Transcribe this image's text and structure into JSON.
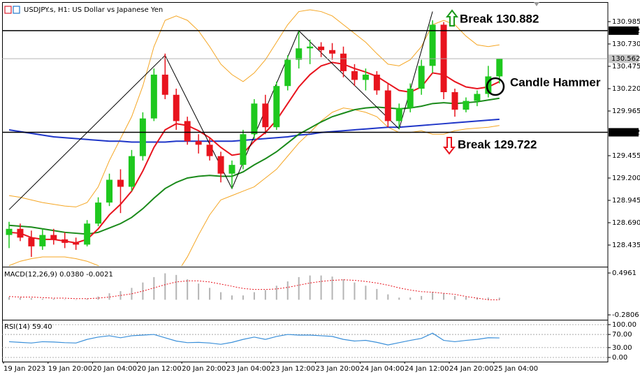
{
  "chart_data": [
    {
      "type": "candlestick",
      "title": "USDJPY.s, H1:  US Dollar vs Japanese Yen",
      "categories": [
        "19 Jan 2023",
        null,
        null,
        null,
        "19 Jan 20:00",
        null,
        null,
        null,
        "20 Jan 04:00",
        null,
        null,
        null,
        "20 Jan 12:00",
        null,
        null,
        null,
        "20 Jan 20:00",
        null,
        null,
        null,
        "23 Jan 04:00",
        null,
        null,
        null,
        "23 Jan 12:00",
        null,
        null,
        null,
        "23 Jan 20:00",
        null,
        null,
        null,
        "24 Jan 04:00",
        null,
        null,
        null,
        "24 Jan 12:00",
        null,
        null,
        null,
        "24 Jan 20:00",
        null,
        null,
        null,
        "25 Jan 04:00"
      ],
      "open": [
        128.55,
        128.62,
        128.52,
        128.42,
        128.55,
        128.5,
        128.46,
        128.44,
        128.68,
        128.92,
        129.18,
        129.1,
        129.45,
        129.88,
        130.38,
        130.15,
        129.85,
        129.62,
        129.58,
        129.45,
        129.25,
        129.35,
        129.7,
        130.05,
        129.78,
        130.25,
        130.55,
        130.68,
        130.7,
        130.66,
        130.62,
        130.42,
        130.32,
        130.38,
        130.2,
        129.85,
        130.0,
        130.22,
        130.48,
        130.95,
        130.18,
        129.98,
        130.08,
        130.16,
        130.36
      ],
      "high": [
        128.7,
        128.68,
        128.6,
        128.62,
        128.62,
        128.58,
        128.52,
        128.72,
        128.98,
        129.25,
        129.3,
        129.52,
        129.95,
        130.45,
        130.62,
        130.22,
        129.9,
        129.7,
        129.66,
        129.5,
        129.4,
        129.75,
        130.1,
        130.15,
        130.3,
        130.6,
        130.88,
        130.78,
        130.75,
        130.74,
        130.7,
        130.5,
        130.45,
        130.42,
        130.28,
        130.05,
        130.28,
        130.55,
        131.0,
        130.98,
        130.22,
        130.12,
        130.2,
        130.48,
        130.56
      ],
      "low": [
        128.4,
        128.48,
        128.3,
        128.38,
        128.44,
        128.4,
        128.38,
        128.42,
        128.65,
        128.88,
        128.8,
        129.05,
        129.4,
        129.85,
        130.1,
        129.75,
        129.58,
        129.48,
        129.4,
        129.15,
        129.08,
        129.3,
        129.65,
        129.7,
        129.75,
        130.2,
        130.45,
        130.5,
        130.58,
        130.55,
        130.35,
        130.25,
        130.2,
        130.15,
        129.78,
        129.76,
        129.95,
        130.15,
        130.4,
        130.1,
        129.9,
        129.95,
        130.02,
        130.12,
        130.28
      ],
      "close": [
        128.62,
        128.52,
        128.42,
        128.55,
        128.5,
        128.46,
        128.44,
        128.68,
        128.92,
        129.18,
        129.1,
        129.45,
        129.88,
        130.38,
        130.15,
        129.85,
        129.62,
        129.58,
        129.45,
        129.25,
        129.35,
        129.7,
        130.05,
        129.78,
        130.25,
        130.55,
        130.68,
        130.7,
        130.66,
        130.62,
        130.42,
        130.32,
        130.38,
        130.2,
        129.85,
        130.0,
        130.22,
        130.48,
        130.95,
        130.18,
        129.98,
        130.08,
        130.16,
        130.36,
        130.56
      ],
      "up_color": "#1ec81e",
      "down_color": "#e8141e",
      "overlays": [
        {
          "color": "#f5a623",
          "width": 1,
          "values": [
            129.0,
            128.98,
            128.95,
            128.92,
            128.9,
            128.88,
            128.87,
            128.92,
            129.1,
            129.4,
            129.65,
            129.9,
            130.25,
            130.7,
            131.0,
            131.05,
            131.0,
            130.88,
            130.7,
            130.5,
            130.38,
            130.3,
            130.4,
            130.55,
            130.75,
            130.95,
            131.1,
            131.12,
            131.1,
            131.05,
            130.95,
            130.85,
            130.75,
            130.62,
            130.5,
            130.48,
            130.55,
            130.7,
            130.95,
            131.0,
            130.95,
            130.82,
            130.72,
            130.7,
            130.72
          ]
        },
        {
          "color": "#f5a623",
          "width": 1,
          "values": [
            128.2,
            128.25,
            128.28,
            128.3,
            128.3,
            128.3,
            128.28,
            128.25,
            128.2,
            128.12,
            128.1,
            128.1,
            128.05,
            127.95,
            127.95,
            128.1,
            128.3,
            128.55,
            128.78,
            128.95,
            129.0,
            129.05,
            129.1,
            129.2,
            129.3,
            129.45,
            129.6,
            129.72,
            129.85,
            129.95,
            130.0,
            129.98,
            129.95,
            129.9,
            129.78,
            129.72,
            129.72,
            129.74,
            129.7,
            129.7,
            129.74,
            129.76,
            129.77,
            129.78,
            129.8
          ]
        },
        {
          "color": "#1f36c8",
          "width": 2,
          "values": [
            129.75,
            129.73,
            129.71,
            129.69,
            129.67,
            129.66,
            129.65,
            129.64,
            129.63,
            129.62,
            129.62,
            129.61,
            129.61,
            129.61,
            129.61,
            129.62,
            129.62,
            129.62,
            129.62,
            129.62,
            129.62,
            129.63,
            129.64,
            129.65,
            129.66,
            129.67,
            129.69,
            129.7,
            129.72,
            129.73,
            129.74,
            129.75,
            129.76,
            129.77,
            129.78,
            129.78,
            129.79,
            129.8,
            129.81,
            129.82,
            129.83,
            129.84,
            129.85,
            129.86,
            129.87
          ]
        },
        {
          "color": "#1a8a1a",
          "width": 2,
          "values": [
            128.66,
            128.65,
            128.64,
            128.62,
            128.6,
            128.58,
            128.57,
            128.56,
            128.58,
            128.63,
            128.68,
            128.75,
            128.85,
            128.97,
            129.08,
            129.15,
            129.2,
            129.22,
            129.23,
            129.22,
            129.22,
            129.27,
            129.35,
            129.42,
            129.5,
            129.6,
            129.7,
            129.77,
            129.84,
            129.9,
            129.94,
            129.98,
            130.0,
            130.01,
            130.0,
            129.99,
            130.0,
            130.02,
            130.05,
            130.06,
            130.05,
            130.06,
            130.07,
            130.09,
            130.11
          ]
        },
        {
          "color": "#e8141e",
          "width": 2,
          "values": [
            128.58,
            128.57,
            128.52,
            128.5,
            128.5,
            128.48,
            128.46,
            128.5,
            128.62,
            128.78,
            128.9,
            129.05,
            129.28,
            129.55,
            129.75,
            129.82,
            129.8,
            129.74,
            129.66,
            129.55,
            129.46,
            129.48,
            129.62,
            129.72,
            129.86,
            130.05,
            130.24,
            130.38,
            130.48,
            130.52,
            130.5,
            130.45,
            130.41,
            130.36,
            130.28,
            130.2,
            130.18,
            130.24,
            130.4,
            130.38,
            130.3,
            130.24,
            130.22,
            130.24,
            130.3
          ]
        }
      ],
      "zigzag": {
        "x": [
          0,
          14,
          20,
          26,
          35,
          38
        ],
        "values": [
          128.84,
          130.6,
          129.08,
          130.88,
          129.76,
          131.1
        ]
      },
      "ylim": [
        128.196,
        131.192
      ],
      "yticks": [
        130.985,
        {
          "value": 130.73,
          "label": "130.730"
        },
        130.475,
        {
          "value": 130.22,
          "label": "130.220"
        },
        129.965,
        129.455,
        {
          "value": 129.2,
          "label": "129.200"
        },
        128.945,
        {
          "value": 128.69,
          "label": "128.690"
        },
        128.435
      ],
      "levels": [
        130.882,
        129.722
      ],
      "last_price": 130.562,
      "annotations": [
        "Break 130.882",
        "Break 129.722",
        "Candle Hammer"
      ]
    },
    {
      "type": "macd",
      "title": "MACD(12,26,9) 0.0380 -0.0021",
      "histogram": {
        "color": "#b4b4b4",
        "values": [
          0.05,
          0.04,
          0.03,
          0.02,
          0.02,
          0.01,
          0.0,
          0.02,
          0.06,
          0.12,
          0.16,
          0.22,
          0.32,
          0.42,
          0.49,
          0.46,
          0.38,
          0.3,
          0.22,
          0.14,
          0.08,
          0.08,
          0.14,
          0.18,
          0.26,
          0.34,
          0.42,
          0.45,
          0.45,
          0.43,
          0.38,
          0.32,
          0.26,
          0.2,
          0.1,
          0.04,
          0.04,
          0.07,
          0.14,
          0.12,
          0.07,
          0.05,
          0.04,
          0.04,
          0.038
        ]
      },
      "signal": {
        "color": "#e8141e",
        "values": [
          0.06,
          0.05,
          0.05,
          0.04,
          0.03,
          0.03,
          0.02,
          0.02,
          0.03,
          0.05,
          0.08,
          0.11,
          0.16,
          0.22,
          0.28,
          0.33,
          0.35,
          0.35,
          0.33,
          0.29,
          0.25,
          0.21,
          0.19,
          0.19,
          0.2,
          0.23,
          0.27,
          0.31,
          0.34,
          0.36,
          0.37,
          0.36,
          0.34,
          0.31,
          0.27,
          0.22,
          0.18,
          0.15,
          0.14,
          0.12,
          0.1,
          0.06,
          0.03,
          0.0,
          -0.0021
        ]
      },
      "ylim": [
        -0.358,
        0.587
      ],
      "yticks": [
        0.4961,
        -0.2806
      ]
    },
    {
      "type": "rsi",
      "title": "RSI(14) 59.40",
      "color": "#3a8fd9",
      "values": [
        48,
        46,
        44,
        48,
        47,
        45,
        44,
        55,
        62,
        66,
        60,
        66,
        68,
        70,
        60,
        50,
        45,
        46,
        44,
        40,
        46,
        55,
        62,
        55,
        64,
        70,
        68,
        68,
        66,
        64,
        55,
        50,
        52,
        46,
        38,
        45,
        52,
        58,
        74,
        52,
        48,
        52,
        55,
        60,
        59.4
      ],
      "ylim": [
        -12.8,
        110.6
      ],
      "yticks": [
        {
          "value": 100,
          "label": "100.00"
        },
        {
          "value": 70,
          "label": "70.00"
        },
        {
          "value": 30,
          "label": "30.00"
        },
        {
          "value": 0,
          "label": "0.00"
        }
      ],
      "grid": true
    }
  ]
}
